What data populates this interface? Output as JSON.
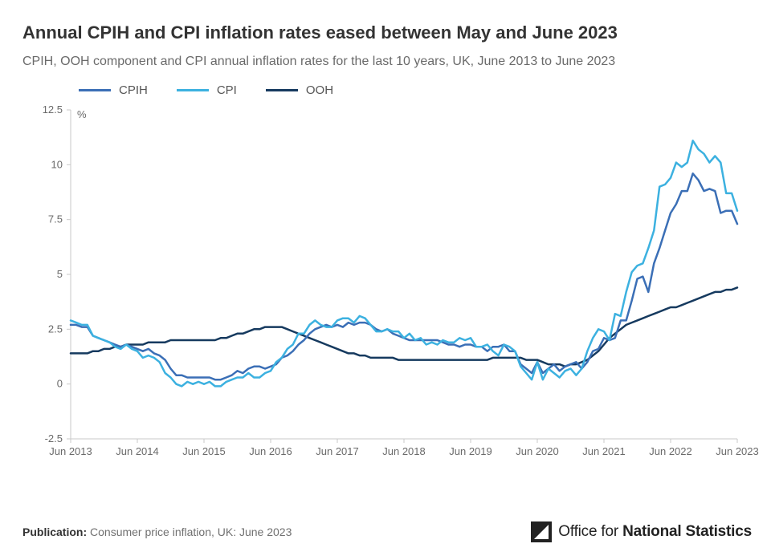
{
  "title": "Annual CPIH and CPI inflation rates eased between May and June 2023",
  "subtitle": "CPIH, OOH component and CPI annual inflation rates for the last 10 years, UK, June 2013 to June 2023",
  "publication_label": "Publication:",
  "publication_value": "Consumer price inflation, UK: June 2023",
  "logo_prefix": "Office for",
  "logo_bold": "National Statistics",
  "chart": {
    "type": "line",
    "background_color": "#ffffff",
    "axis_color": "#c9c9c9",
    "tick_label_color": "#6a6a6a",
    "tick_fontsize": 13,
    "y_unit_label": "%",
    "ylim": [
      -2.5,
      12.5
    ],
    "ytick_step": 2.5,
    "yticks": [
      -2.5,
      0,
      2.5,
      5,
      7.5,
      10,
      12.5
    ],
    "x_start_index": 0,
    "x_end_index": 120,
    "x_tick_indices": [
      0,
      12,
      24,
      36,
      48,
      60,
      72,
      84,
      96,
      108,
      120
    ],
    "x_tick_labels": [
      "Jun 2013",
      "Jun 2014",
      "Jun 2015",
      "Jun 2016",
      "Jun 2017",
      "Jun 2018",
      "Jun 2019",
      "Jun 2020",
      "Jun 2021",
      "Jun 2022",
      "Jun 2023"
    ],
    "line_width": 2.5,
    "legend": [
      {
        "key": "cpih",
        "label": "CPIH",
        "color": "#3b6fb6"
      },
      {
        "key": "cpi",
        "label": "CPI",
        "color": "#3cb1e0"
      },
      {
        "key": "ooh",
        "label": "OOH",
        "color": "#163a5f"
      }
    ],
    "series": {
      "cpih": [
        2.7,
        2.7,
        2.6,
        2.6,
        2.2,
        2.1,
        2.0,
        1.9,
        1.8,
        1.7,
        1.8,
        1.7,
        1.6,
        1.5,
        1.6,
        1.4,
        1.3,
        1.1,
        0.7,
        0.4,
        0.4,
        0.3,
        0.3,
        0.3,
        0.3,
        0.3,
        0.2,
        0.2,
        0.3,
        0.4,
        0.6,
        0.5,
        0.7,
        0.8,
        0.8,
        0.7,
        0.8,
        0.9,
        1.2,
        1.3,
        1.5,
        1.8,
        2.0,
        2.3,
        2.5,
        2.6,
        2.7,
        2.6,
        2.7,
        2.6,
        2.8,
        2.7,
        2.8,
        2.8,
        2.7,
        2.5,
        2.4,
        2.5,
        2.3,
        2.2,
        2.1,
        2.0,
        2.0,
        2.0,
        2.0,
        2.0,
        2.0,
        1.9,
        1.8,
        1.8,
        1.7,
        1.8,
        1.8,
        1.7,
        1.7,
        1.5,
        1.7,
        1.7,
        1.8,
        1.5,
        1.5,
        0.9,
        0.7,
        0.5,
        1.0,
        0.5,
        0.7,
        0.9,
        0.6,
        0.8,
        0.9,
        1.0,
        0.7,
        1.0,
        1.5,
        1.6,
        2.1,
        2.0,
        2.1,
        2.9,
        2.9,
        3.8,
        4.8,
        4.9,
        4.2,
        5.5,
        6.2,
        7.0,
        7.8,
        8.2,
        8.8,
        8.8,
        9.6,
        9.3,
        8.8,
        8.9,
        8.8,
        7.8,
        7.9,
        7.9,
        7.3
      ],
      "cpi": [
        2.9,
        2.8,
        2.7,
        2.7,
        2.2,
        2.1,
        2.0,
        1.9,
        1.7,
        1.6,
        1.8,
        1.6,
        1.5,
        1.2,
        1.3,
        1.2,
        1.0,
        0.5,
        0.3,
        0.0,
        -0.1,
        0.1,
        0.0,
        0.1,
        0.0,
        0.1,
        -0.1,
        -0.1,
        0.1,
        0.2,
        0.3,
        0.3,
        0.5,
        0.3,
        0.3,
        0.5,
        0.6,
        1.0,
        1.2,
        1.6,
        1.8,
        2.3,
        2.3,
        2.7,
        2.9,
        2.7,
        2.6,
        2.6,
        2.9,
        3.0,
        3.0,
        2.8,
        3.1,
        3.0,
        2.7,
        2.4,
        2.4,
        2.5,
        2.4,
        2.4,
        2.1,
        2.3,
        2.0,
        2.1,
        1.8,
        1.9,
        1.8,
        2.0,
        1.9,
        1.9,
        2.1,
        2.0,
        2.1,
        1.7,
        1.7,
        1.8,
        1.5,
        1.3,
        1.8,
        1.7,
        1.5,
        0.8,
        0.5,
        0.2,
        1.0,
        0.2,
        0.7,
        0.5,
        0.3,
        0.6,
        0.7,
        0.4,
        0.7,
        1.5,
        2.1,
        2.5,
        2.4,
        2.0,
        3.2,
        3.1,
        4.2,
        5.1,
        5.4,
        5.5,
        6.2,
        7.0,
        9.0,
        9.1,
        9.4,
        10.1,
        9.9,
        10.1,
        11.1,
        10.7,
        10.5,
        10.1,
        10.4,
        10.1,
        8.7,
        8.7,
        7.9
      ],
      "ooh": [
        1.4,
        1.4,
        1.4,
        1.4,
        1.5,
        1.5,
        1.6,
        1.6,
        1.7,
        1.7,
        1.8,
        1.8,
        1.8,
        1.8,
        1.9,
        1.9,
        1.9,
        1.9,
        2.0,
        2.0,
        2.0,
        2.0,
        2.0,
        2.0,
        2.0,
        2.0,
        2.0,
        2.1,
        2.1,
        2.2,
        2.3,
        2.3,
        2.4,
        2.5,
        2.5,
        2.6,
        2.6,
        2.6,
        2.6,
        2.5,
        2.4,
        2.3,
        2.2,
        2.1,
        2.0,
        1.9,
        1.8,
        1.7,
        1.6,
        1.5,
        1.4,
        1.4,
        1.3,
        1.3,
        1.2,
        1.2,
        1.2,
        1.2,
        1.2,
        1.1,
        1.1,
        1.1,
        1.1,
        1.1,
        1.1,
        1.1,
        1.1,
        1.1,
        1.1,
        1.1,
        1.1,
        1.1,
        1.1,
        1.1,
        1.1,
        1.1,
        1.2,
        1.2,
        1.2,
        1.2,
        1.2,
        1.2,
        1.1,
        1.1,
        1.1,
        1.0,
        0.9,
        0.9,
        0.9,
        0.8,
        0.9,
        0.9,
        1.0,
        1.1,
        1.3,
        1.5,
        1.8,
        2.1,
        2.3,
        2.5,
        2.7,
        2.8,
        2.9,
        3.0,
        3.1,
        3.2,
        3.3,
        3.4,
        3.5,
        3.5,
        3.6,
        3.7,
        3.8,
        3.9,
        4.0,
        4.1,
        4.2,
        4.2,
        4.3,
        4.3,
        4.4
      ]
    }
  }
}
